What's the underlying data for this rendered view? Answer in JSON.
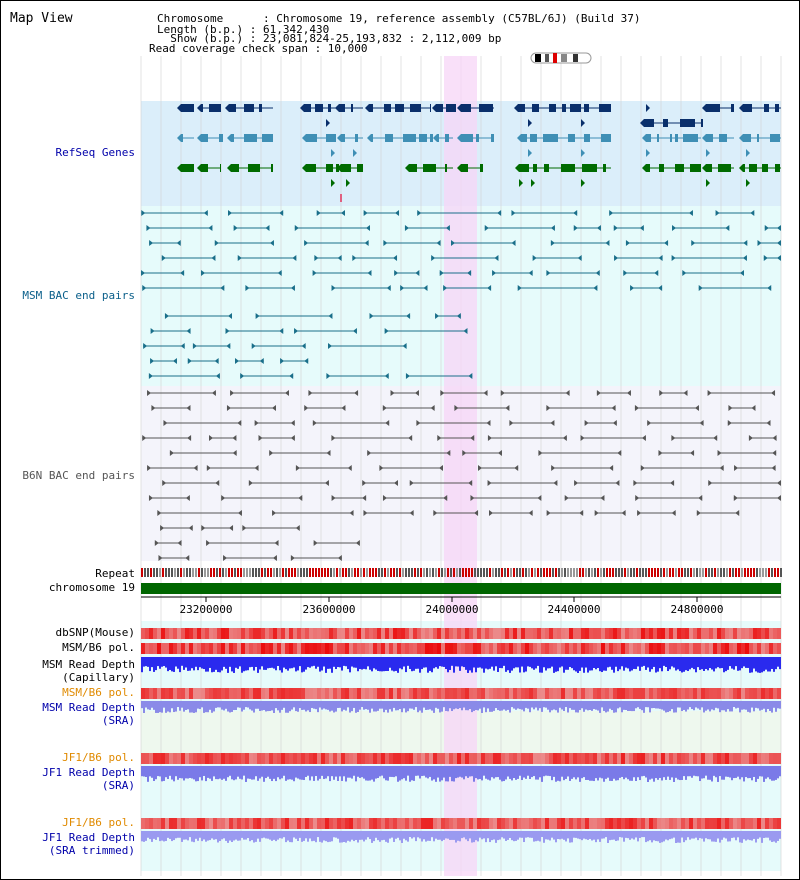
{
  "title": "Map View",
  "info": {
    "chromosome": "Chromosome      : Chromosome 19, reference assembly (C57BL/6J) (Build 37)",
    "length": "Length (b.p.) : 61,342,430",
    "show": "  Show (b.p.) : 23,081,824-25,193,832 : 2,112,009 bp",
    "coverage": "Read coverage check span : 10,000"
  },
  "tracks": {
    "refseq": "RefSeq Genes",
    "msm_bac": "MSM BAC end pairs",
    "b6n_bac": "B6N BAC end pairs",
    "repeat": "Repeat",
    "chromosome": "chromosome 19",
    "dbsnp": "dbSNP(Mouse)",
    "msm_b6_pol_1": "MSM/B6 pol.",
    "msm_read_depth_cap_1": "MSM Read Depth",
    "msm_read_depth_cap_2": "(Capillary)",
    "msm_b6_pol_2": "MSM/B6 pol.",
    "msm_read_depth_sra_1": "MSM Read Depth",
    "msm_read_depth_sra_2": "(SRA)",
    "jf1_b6_pol_1": "JF1/B6 pol.",
    "jf1_read_depth_1": "JF1 Read Depth",
    "jf1_read_depth_2": "(SRA)",
    "jf1_b6_pol_2": "JF1/B6 pol.",
    "jf1_read_depth_trim_1": "JF1 Read Depth",
    "jf1_read_depth_trim_2": "(SRA trimmed)"
  },
  "axis": {
    "ticks": [
      "23200000",
      "23600000",
      "24000000",
      "24400000",
      "24800000"
    ]
  },
  "colors": {
    "refseq_bg": "#dbeefa",
    "msm_bg": "#e6fbfb",
    "b6n_bg": "#f4f4fb",
    "highlight": "#f7d6f7",
    "refseq_navy": "#0a2f6b",
    "refseq_teal": "#3f8fb5",
    "refseq_green": "#006b00",
    "msm_color": "#1a6f8a",
    "b6n_color": "#555555",
    "chromosome_bar": "#006600",
    "label_blue": "#0000aa",
    "label_orange": "#e08a00",
    "label_teal": "#0a5f8a"
  }
}
